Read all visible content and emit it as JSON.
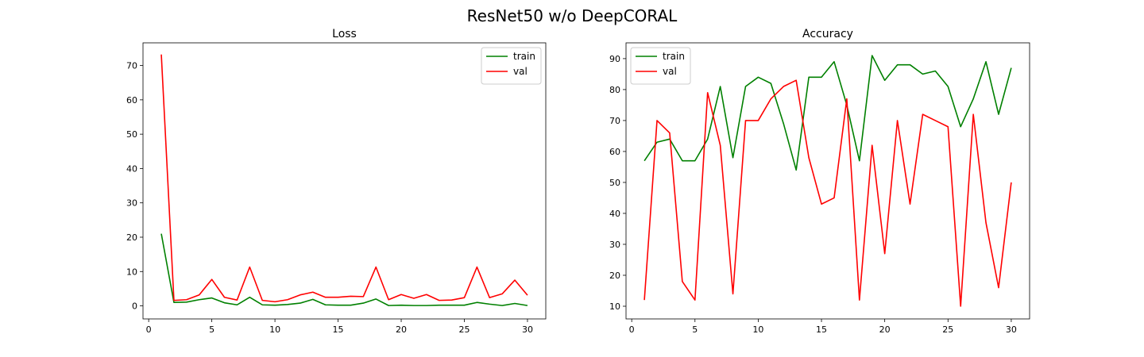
{
  "figure": {
    "title": "ResNet50 w/o DeepCORAL"
  },
  "chart_data": [
    {
      "type": "line",
      "title": "Loss",
      "xlabel": "",
      "ylabel": "",
      "xlim": [
        -0.45,
        31.45
      ],
      "ylim": [
        -3.8,
        76.6
      ],
      "xticks": [
        0,
        5,
        10,
        15,
        20,
        25,
        30
      ],
      "yticks": [
        0,
        10,
        20,
        30,
        40,
        50,
        60,
        70
      ],
      "grid": false,
      "legend": "upper right",
      "x": [
        1,
        2,
        3,
        4,
        5,
        6,
        7,
        8,
        9,
        10,
        11,
        12,
        13,
        14,
        15,
        16,
        17,
        18,
        19,
        20,
        21,
        22,
        23,
        24,
        25,
        26,
        27,
        28,
        29,
        30
      ],
      "series": [
        {
          "name": "train",
          "color": "#008000",
          "values": [
            21,
            1,
            1.1,
            1.8,
            2.3,
            0.9,
            0.3,
            2.5,
            0.3,
            0.2,
            0.4,
            0.8,
            1.9,
            0.3,
            0.2,
            0.2,
            0.8,
            2.0,
            0.1,
            0.2,
            0.1,
            0.1,
            0.2,
            0.2,
            0.2,
            1.0,
            0.5,
            0.1,
            0.7,
            0.1
          ]
        },
        {
          "name": "val",
          "color": "#ff0000",
          "values": [
            73.2,
            1.6,
            1.8,
            3.2,
            7.7,
            2.5,
            1.7,
            11.3,
            1.6,
            1.2,
            1.8,
            3.2,
            4.0,
            2.5,
            2.5,
            2.8,
            2.7,
            11.3,
            1.8,
            3.3,
            2.2,
            3.3,
            1.6,
            1.7,
            2.4,
            11.3,
            2.4,
            3.5,
            7.5,
            3.1
          ]
        }
      ]
    },
    {
      "type": "line",
      "title": "Accuracy",
      "xlabel": "",
      "ylabel": "",
      "xlim": [
        -0.45,
        31.45
      ],
      "ylim": [
        5.9,
        95.1
      ],
      "xticks": [
        0,
        5,
        10,
        15,
        20,
        25,
        30
      ],
      "yticks": [
        10,
        20,
        30,
        40,
        50,
        60,
        70,
        80,
        90
      ],
      "grid": false,
      "legend": "upper left",
      "x": [
        1,
        2,
        3,
        4,
        5,
        6,
        7,
        8,
        9,
        10,
        11,
        12,
        13,
        14,
        15,
        16,
        17,
        18,
        19,
        20,
        21,
        22,
        23,
        24,
        25,
        26,
        27,
        28,
        29,
        30
      ],
      "series": [
        {
          "name": "train",
          "color": "#008000",
          "values": [
            57,
            63,
            64,
            57,
            57,
            64,
            81,
            58,
            81,
            84,
            82,
            69,
            54,
            84,
            84,
            89,
            75,
            57,
            91,
            83,
            88,
            88,
            85,
            86,
            81,
            68,
            77,
            89,
            72,
            87
          ]
        },
        {
          "name": "val",
          "color": "#ff0000",
          "values": [
            12,
            70,
            66,
            18,
            12,
            79,
            62,
            14,
            70,
            70,
            77,
            81,
            83,
            58,
            43,
            45,
            77,
            12,
            62,
            27,
            70,
            43,
            72,
            70,
            68,
            10,
            72,
            37,
            16,
            50
          ]
        }
      ]
    }
  ]
}
